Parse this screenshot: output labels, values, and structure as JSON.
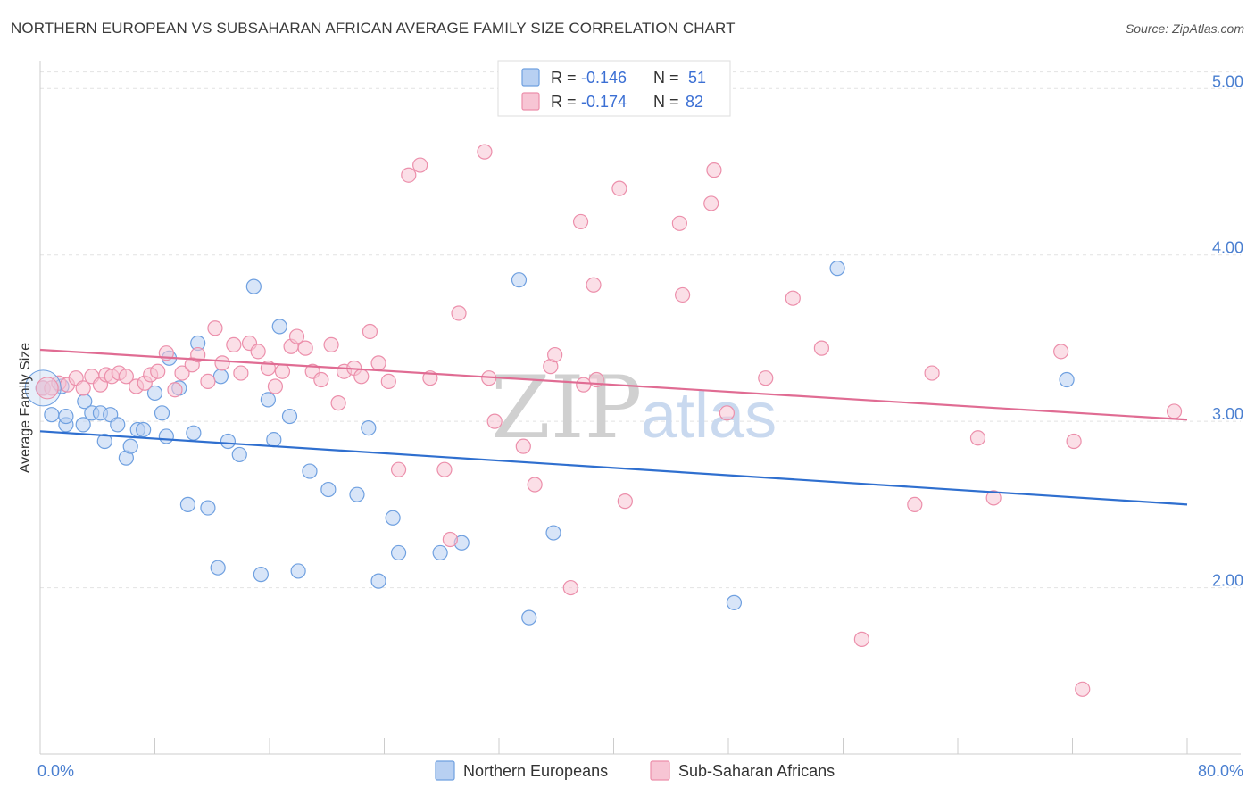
{
  "header": {
    "title": "NORTHERN EUROPEAN VS SUBSAHARAN AFRICAN AVERAGE FAMILY SIZE CORRELATION CHART",
    "source": "Source: ZipAtlas.com"
  },
  "watermark": {
    "zip": "ZIP",
    "atlas": "atlas"
  },
  "legend_top": {
    "rows": [
      {
        "r_label": "R =",
        "r_value": "-0.146",
        "n_label": "N =",
        "n_value": "51",
        "color": "#aac8f0"
      },
      {
        "r_label": "R =",
        "r_value": "-0.174",
        "n_label": "N =",
        "n_value": "82",
        "color": "#f6b6c8"
      }
    ]
  },
  "chart_data": {
    "type": "scatter",
    "ylabel": "Average Family Size",
    "xlim": [
      0,
      80
    ],
    "ylim": [
      1.0,
      5.2
    ],
    "x_tick_labels": [
      "0.0%",
      "80.0%"
    ],
    "y_ticks": [
      {
        "value": 2.0,
        "label": "2.00"
      },
      {
        "value": 3.0,
        "label": "3.00"
      },
      {
        "value": 4.0,
        "label": "4.00"
      },
      {
        "value": 5.0,
        "label": "5.00"
      }
    ],
    "grid": "horizontal-dashed",
    "legend_position": "bottom-center",
    "series": [
      {
        "name": "Northern Europeans",
        "color": "#6fa0e0",
        "fill": "#b8d0f2",
        "trend": {
          "x0": 0,
          "y0": 2.94,
          "x1": 80,
          "y1": 2.5,
          "color": "#2f6fcf"
        },
        "points": [
          [
            0.2,
            3.2
          ],
          [
            0.8,
            3.04
          ],
          [
            1.5,
            3.21
          ],
          [
            1.8,
            2.98
          ],
          [
            3.0,
            2.98
          ],
          [
            1.8,
            3.03
          ],
          [
            3.1,
            3.12
          ],
          [
            3.6,
            3.05
          ],
          [
            4.2,
            3.05
          ],
          [
            4.5,
            2.88
          ],
          [
            4.9,
            3.04
          ],
          [
            5.4,
            2.98
          ],
          [
            6.0,
            2.78
          ],
          [
            6.3,
            2.85
          ],
          [
            6.8,
            2.95
          ],
          [
            7.2,
            2.95
          ],
          [
            8.0,
            3.17
          ],
          [
            8.5,
            3.05
          ],
          [
            8.8,
            2.91
          ],
          [
            9.0,
            3.38
          ],
          [
            9.7,
            3.2
          ],
          [
            10.3,
            2.5
          ],
          [
            10.7,
            2.93
          ],
          [
            11.0,
            3.47
          ],
          [
            11.7,
            2.48
          ],
          [
            12.4,
            2.12
          ],
          [
            12.6,
            3.27
          ],
          [
            13.1,
            2.88
          ],
          [
            13.9,
            2.8
          ],
          [
            14.9,
            3.81
          ],
          [
            15.4,
            2.08
          ],
          [
            15.9,
            3.13
          ],
          [
            16.3,
            2.89
          ],
          [
            16.7,
            3.57
          ],
          [
            17.4,
            3.03
          ],
          [
            18.0,
            2.1
          ],
          [
            18.8,
            2.7
          ],
          [
            20.1,
            2.59
          ],
          [
            22.1,
            2.56
          ],
          [
            22.9,
            2.96
          ],
          [
            23.6,
            2.04
          ],
          [
            24.6,
            2.42
          ],
          [
            25.0,
            2.21
          ],
          [
            27.9,
            2.21
          ],
          [
            29.4,
            2.27
          ],
          [
            33.4,
            3.85
          ],
          [
            34.1,
            1.82
          ],
          [
            35.8,
            2.33
          ],
          [
            48.4,
            1.91
          ],
          [
            55.6,
            3.92
          ],
          [
            71.6,
            3.25
          ]
        ]
      },
      {
        "name": "Sub-Saharan Africans",
        "color": "#ec8fab",
        "fill": "#f7c5d4",
        "trend": {
          "x0": 0,
          "y0": 3.43,
          "x1": 80,
          "y1": 3.01,
          "color": "#e06c93"
        },
        "points": [
          [
            0.2,
            3.2
          ],
          [
            0.8,
            3.2
          ],
          [
            1.3,
            3.23
          ],
          [
            1.9,
            3.22
          ],
          [
            2.5,
            3.26
          ],
          [
            3.0,
            3.2
          ],
          [
            3.6,
            3.27
          ],
          [
            4.2,
            3.22
          ],
          [
            4.6,
            3.28
          ],
          [
            5.0,
            3.27
          ],
          [
            5.5,
            3.29
          ],
          [
            6.0,
            3.27
          ],
          [
            6.7,
            3.21
          ],
          [
            7.3,
            3.23
          ],
          [
            7.7,
            3.28
          ],
          [
            8.2,
            3.3
          ],
          [
            8.8,
            3.41
          ],
          [
            9.4,
            3.19
          ],
          [
            9.9,
            3.29
          ],
          [
            10.6,
            3.34
          ],
          [
            11.0,
            3.4
          ],
          [
            11.7,
            3.24
          ],
          [
            12.2,
            3.56
          ],
          [
            12.7,
            3.35
          ],
          [
            13.5,
            3.46
          ],
          [
            14.0,
            3.29
          ],
          [
            14.6,
            3.47
          ],
          [
            15.2,
            3.42
          ],
          [
            15.9,
            3.32
          ],
          [
            16.4,
            3.21
          ],
          [
            16.9,
            3.3
          ],
          [
            17.5,
            3.45
          ],
          [
            17.9,
            3.51
          ],
          [
            18.5,
            3.44
          ],
          [
            19.0,
            3.3
          ],
          [
            19.6,
            3.25
          ],
          [
            20.3,
            3.46
          ],
          [
            20.8,
            3.11
          ],
          [
            21.2,
            3.3
          ],
          [
            21.9,
            3.32
          ],
          [
            22.4,
            3.27
          ],
          [
            23.0,
            3.54
          ],
          [
            23.6,
            3.35
          ],
          [
            24.3,
            3.24
          ],
          [
            25.0,
            2.71
          ],
          [
            25.7,
            4.48
          ],
          [
            26.5,
            4.54
          ],
          [
            27.2,
            3.26
          ],
          [
            28.2,
            2.71
          ],
          [
            28.6,
            2.29
          ],
          [
            29.2,
            3.65
          ],
          [
            31.0,
            4.62
          ],
          [
            31.3,
            3.26
          ],
          [
            31.7,
            3.0
          ],
          [
            33.7,
            2.85
          ],
          [
            34.5,
            2.62
          ],
          [
            35.6,
            3.33
          ],
          [
            35.9,
            3.4
          ],
          [
            37.0,
            2.0
          ],
          [
            37.7,
            4.2
          ],
          [
            37.9,
            3.22
          ],
          [
            38.6,
            3.82
          ],
          [
            38.8,
            3.25
          ],
          [
            40.4,
            4.4
          ],
          [
            40.8,
            2.52
          ],
          [
            44.6,
            4.19
          ],
          [
            44.8,
            3.76
          ],
          [
            46.8,
            4.31
          ],
          [
            47.0,
            4.51
          ],
          [
            47.9,
            3.05
          ],
          [
            50.6,
            3.26
          ],
          [
            52.5,
            3.74
          ],
          [
            54.5,
            3.44
          ],
          [
            57.3,
            1.69
          ],
          [
            61.0,
            2.5
          ],
          [
            62.2,
            3.29
          ],
          [
            65.4,
            2.9
          ],
          [
            66.5,
            2.54
          ],
          [
            71.2,
            3.42
          ],
          [
            72.1,
            2.88
          ],
          [
            72.7,
            1.39
          ],
          [
            79.1,
            3.06
          ]
        ]
      }
    ]
  }
}
